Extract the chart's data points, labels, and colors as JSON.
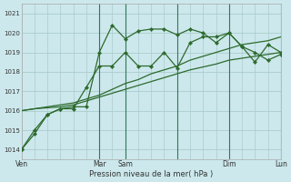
{
  "background_color": "#cce8ec",
  "grid_color": "#aacccc",
  "line_color": "#2d6a2d",
  "marker_color": "#2d6a2d",
  "xlim": [
    0,
    120
  ],
  "ylim": [
    1013.5,
    1021.5
  ],
  "yticks": [
    1014,
    1015,
    1016,
    1017,
    1018,
    1019,
    1020,
    1021
  ],
  "xtick_positions": [
    0,
    36,
    48,
    72,
    96,
    120
  ],
  "xtick_labels": [
    "Ven",
    "Mar",
    "Sam",
    "",
    "Dim",
    "Lun"
  ],
  "xlabel": "Pression niveau de la mer( hPa )",
  "series1_x": [
    0,
    6,
    12,
    18,
    24,
    30,
    36,
    42,
    48,
    54,
    60,
    66,
    72,
    78,
    84,
    90,
    96,
    102,
    108,
    114,
    120
  ],
  "series1_y": [
    1014.0,
    1015.0,
    1015.8,
    1016.1,
    1016.2,
    1016.2,
    1019.0,
    1020.4,
    1019.7,
    1020.1,
    1020.2,
    1020.2,
    1019.9,
    1020.2,
    1020.0,
    1019.5,
    1020.0,
    1019.3,
    1018.5,
    1019.4,
    1019.0
  ],
  "series2_x": [
    0,
    6,
    12,
    18,
    24,
    30,
    36,
    42,
    48,
    54,
    60,
    66,
    72,
    78,
    84,
    90,
    96,
    102,
    108,
    114,
    120
  ],
  "series2_y": [
    1016.0,
    1016.1,
    1016.2,
    1016.3,
    1016.4,
    1016.6,
    1016.8,
    1017.1,
    1017.4,
    1017.6,
    1017.9,
    1018.1,
    1018.3,
    1018.6,
    1018.8,
    1019.0,
    1019.2,
    1019.4,
    1019.5,
    1019.6,
    1019.8
  ],
  "series3_x": [
    0,
    6,
    12,
    18,
    24,
    30,
    36,
    42,
    48,
    54,
    60,
    66,
    72,
    78,
    84,
    90,
    96,
    102,
    108,
    114,
    120
  ],
  "series3_y": [
    1016.0,
    1016.1,
    1016.15,
    1016.2,
    1016.3,
    1016.5,
    1016.7,
    1016.9,
    1017.1,
    1017.3,
    1017.5,
    1017.7,
    1017.9,
    1018.1,
    1018.25,
    1018.4,
    1018.6,
    1018.7,
    1018.8,
    1018.9,
    1019.0
  ],
  "series_spiky_x": [
    0,
    6,
    12,
    18,
    24,
    30,
    36,
    42,
    48,
    54,
    60,
    66,
    72,
    78,
    84,
    90,
    96,
    102,
    108,
    114,
    120
  ],
  "series_spiky_y": [
    1014.0,
    1014.8,
    1015.8,
    1016.1,
    1016.1,
    1017.2,
    1018.3,
    1018.3,
    1019.0,
    1018.3,
    1018.3,
    1019.0,
    1018.2,
    1019.5,
    1019.8,
    1019.8,
    1020.0,
    1019.3,
    1019.0,
    1018.6,
    1018.9
  ],
  "vlines": [
    36,
    48,
    72,
    96,
    120
  ],
  "figsize": [
    3.2,
    2.0
  ],
  "dpi": 100
}
